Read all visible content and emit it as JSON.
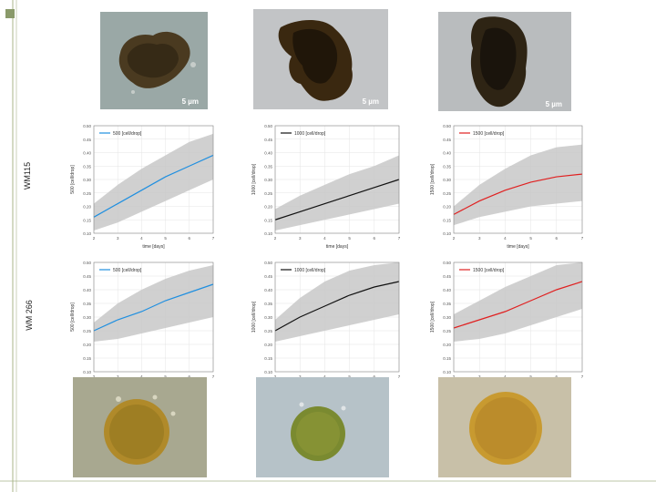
{
  "slide": {
    "accent_color": "#a8b48a"
  },
  "top_photos": [
    {
      "scale_label": "5 µm"
    },
    {
      "scale_label": "5 µm"
    },
    {
      "scale_label": "5 µm"
    }
  ],
  "row_labels": [
    "WM115",
    "WM 266"
  ],
  "chart_data": [
    {
      "type": "line",
      "row": "WM115",
      "legend": "500 [cell/drop]",
      "color": "#1f8fe0",
      "ylabel": "500 [cell/drop]",
      "xlabel": "time [days]",
      "xlim": [
        2,
        7
      ],
      "ylim": [
        0.1,
        0.5
      ],
      "xticks": [
        "2",
        "3",
        "4",
        "5",
        "6",
        "7"
      ],
      "yticks": [
        "0.10",
        "0.15",
        "0.20",
        "0.25",
        "0.30",
        "0.35",
        "0.40",
        "0.45",
        "0.50"
      ],
      "x": [
        2,
        3,
        4,
        5,
        6,
        7
      ],
      "y": [
        0.16,
        0.21,
        0.26,
        0.31,
        0.35,
        0.39
      ],
      "band_upper": [
        0.21,
        0.28,
        0.34,
        0.39,
        0.44,
        0.47
      ],
      "band_lower": [
        0.11,
        0.14,
        0.18,
        0.22,
        0.26,
        0.3
      ]
    },
    {
      "type": "line",
      "row": "WM115",
      "legend": "1000 [cell/drop]",
      "color": "#111111",
      "ylabel": "1000 [cell/drop]",
      "xlabel": "time [days]",
      "xlim": [
        2,
        7
      ],
      "ylim": [
        0.1,
        0.5
      ],
      "xticks": [
        "2",
        "3",
        "4",
        "5",
        "6",
        "7"
      ],
      "yticks": [
        "0.10",
        "0.15",
        "0.20",
        "0.25",
        "0.30",
        "0.35",
        "0.40",
        "0.45",
        "0.50"
      ],
      "x": [
        2,
        3,
        4,
        5,
        6,
        7
      ],
      "y": [
        0.15,
        0.18,
        0.21,
        0.24,
        0.27,
        0.3
      ],
      "band_upper": [
        0.19,
        0.24,
        0.28,
        0.32,
        0.35,
        0.39
      ],
      "band_lower": [
        0.11,
        0.13,
        0.15,
        0.17,
        0.19,
        0.21
      ]
    },
    {
      "type": "line",
      "row": "WM115",
      "legend": "1500 [cell/drop]",
      "color": "#e02020",
      "ylabel": "1500 [cell/drop]",
      "xlabel": "time [days]",
      "xlim": [
        2,
        7
      ],
      "ylim": [
        0.1,
        0.5
      ],
      "xticks": [
        "2",
        "3",
        "4",
        "5",
        "6",
        "7"
      ],
      "yticks": [
        "0.10",
        "0.15",
        "0.20",
        "0.25",
        "0.30",
        "0.35",
        "0.40",
        "0.45",
        "0.50"
      ],
      "x": [
        2,
        3,
        4,
        5,
        6,
        7
      ],
      "y": [
        0.17,
        0.22,
        0.26,
        0.29,
        0.31,
        0.32
      ],
      "band_upper": [
        0.2,
        0.28,
        0.34,
        0.39,
        0.42,
        0.43
      ],
      "band_lower": [
        0.13,
        0.16,
        0.18,
        0.2,
        0.21,
        0.22
      ]
    },
    {
      "type": "line",
      "row": "WM 266",
      "legend": "500 [cell/drop]",
      "color": "#1f8fe0",
      "ylabel": "500 [cell/drop]",
      "xlabel": "",
      "xlim": [
        2,
        7
      ],
      "ylim": [
        0.1,
        0.5
      ],
      "xticks": [
        "2",
        "3",
        "4",
        "5",
        "6",
        "7"
      ],
      "yticks": [
        "0.10",
        "0.15",
        "0.20",
        "0.25",
        "0.30",
        "0.35",
        "0.40",
        "0.45",
        "0.50"
      ],
      "x": [
        2,
        3,
        4,
        5,
        6,
        7
      ],
      "y": [
        0.25,
        0.29,
        0.32,
        0.36,
        0.39,
        0.42
      ],
      "band_upper": [
        0.28,
        0.35,
        0.4,
        0.44,
        0.47,
        0.49
      ],
      "band_lower": [
        0.21,
        0.22,
        0.24,
        0.26,
        0.28,
        0.3
      ]
    },
    {
      "type": "line",
      "row": "WM 266",
      "legend": "1000 [cell/drop]",
      "color": "#111111",
      "ylabel": "1000 [cell/drop]",
      "xlabel": "",
      "xlim": [
        2,
        7
      ],
      "ylim": [
        0.1,
        0.5
      ],
      "xticks": [
        "2",
        "3",
        "4",
        "5",
        "6",
        "7"
      ],
      "yticks": [
        "0.10",
        "0.15",
        "0.20",
        "0.25",
        "0.30",
        "0.35",
        "0.40",
        "0.45",
        "0.50"
      ],
      "x": [
        2,
        3,
        4,
        5,
        6,
        7
      ],
      "y": [
        0.25,
        0.3,
        0.34,
        0.38,
        0.41,
        0.43
      ],
      "band_upper": [
        0.29,
        0.37,
        0.43,
        0.47,
        0.49,
        0.5
      ],
      "band_lower": [
        0.21,
        0.23,
        0.25,
        0.27,
        0.29,
        0.31
      ]
    },
    {
      "type": "line",
      "row": "WM 266",
      "legend": "1500 [cell/drop]",
      "color": "#e02020",
      "ylabel": "1500 [cell/drop]",
      "xlabel": "",
      "xlim": [
        2,
        7
      ],
      "ylim": [
        0.1,
        0.5
      ],
      "xticks": [
        "2",
        "3",
        "4",
        "5",
        "6",
        "7"
      ],
      "yticks": [
        "0.10",
        "0.15",
        "0.20",
        "0.25",
        "0.30",
        "0.35",
        "0.40",
        "0.45",
        "0.50"
      ],
      "x": [
        2,
        3,
        4,
        5,
        6,
        7
      ],
      "y": [
        0.26,
        0.29,
        0.32,
        0.36,
        0.4,
        0.43
      ],
      "band_upper": [
        0.31,
        0.36,
        0.41,
        0.45,
        0.49,
        0.5
      ],
      "band_lower": [
        0.21,
        0.22,
        0.24,
        0.27,
        0.3,
        0.33
      ]
    }
  ]
}
